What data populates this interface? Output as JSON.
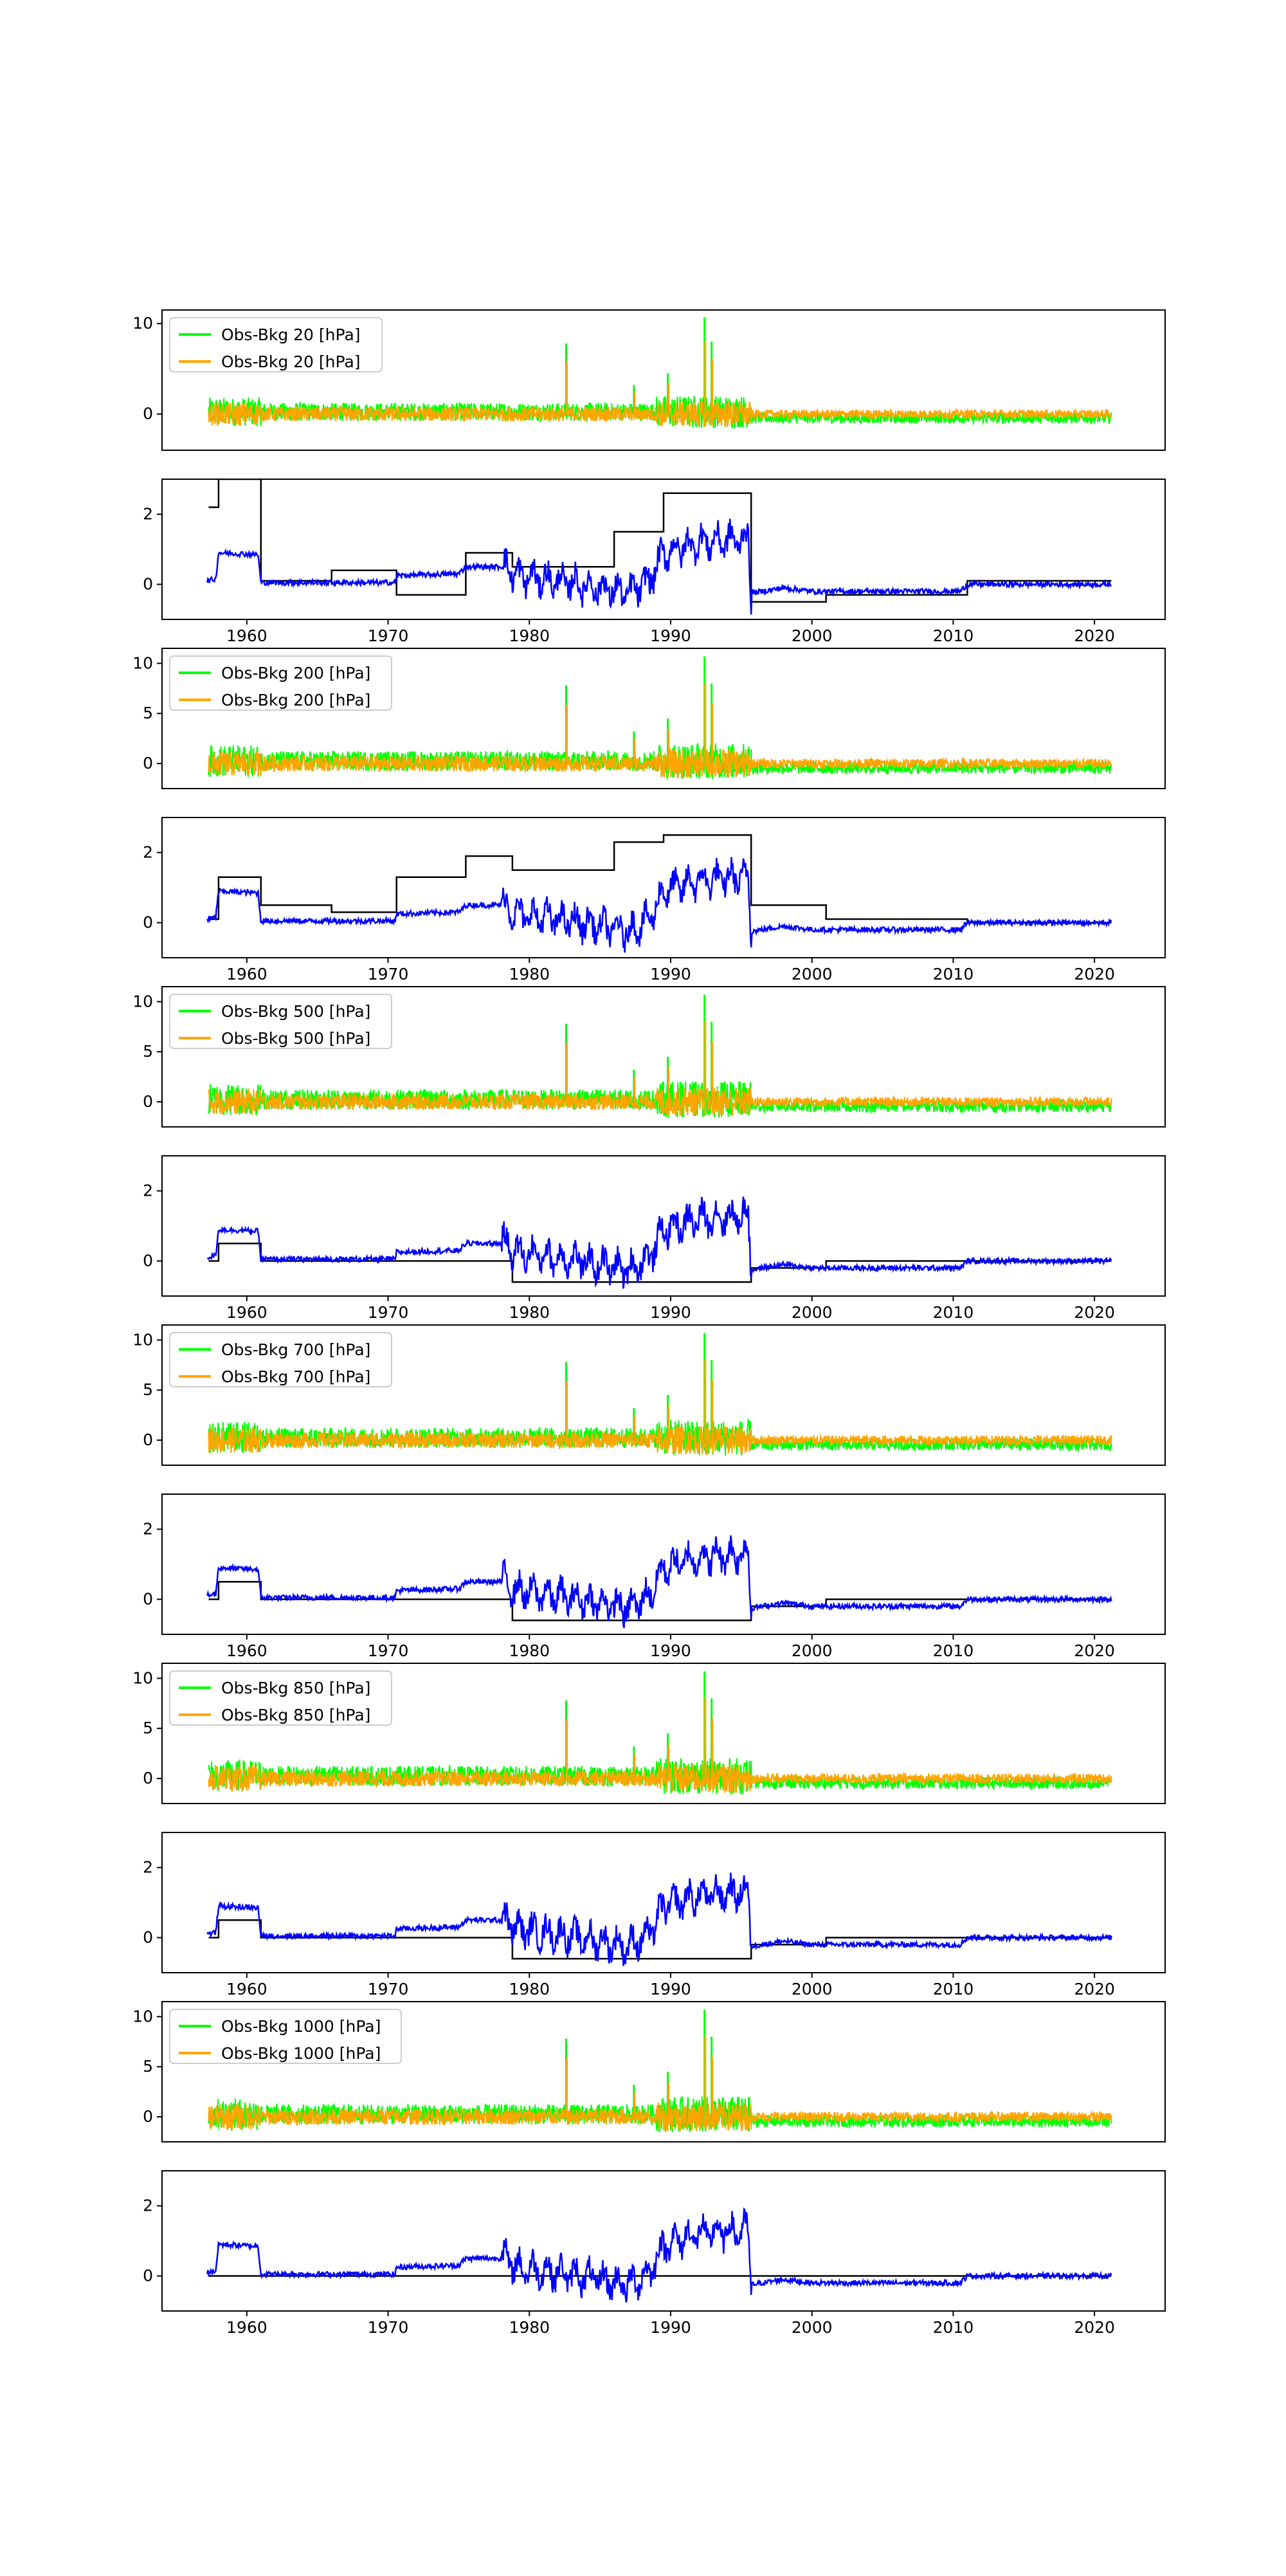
{
  "chart_data": [
    {
      "type": "line",
      "panel": 1,
      "kind": "obs",
      "yticks": [
        0,
        10
      ],
      "ylim": [
        -4,
        11.5
      ],
      "legend_location": "top-left",
      "series": [
        {
          "name": "Obs-Bkg 20 [hPa]",
          "color": "#00ff00"
        },
        {
          "name": "Obs-Bkg 20 [hPa]",
          "color": "#ffa500"
        }
      ]
    },
    {
      "type": "line",
      "panel": 2,
      "kind": "bias",
      "yticks": [
        0,
        2
      ],
      "ylim": [
        -1,
        3
      ],
      "series": [
        {
          "color": "#000000"
        },
        {
          "color": "#0000ff"
        }
      ]
    },
    {
      "type": "line",
      "panel": 3,
      "kind": "obs",
      "yticks": [
        0,
        5,
        10
      ],
      "ylim": [
        -2.5,
        11.5
      ],
      "legend_location": "top-left",
      "series": [
        {
          "name": "Obs-Bkg 200 [hPa]",
          "color": "#00ff00"
        },
        {
          "name": "Obs-Bkg 200 [hPa]",
          "color": "#ffa500"
        }
      ]
    },
    {
      "type": "line",
      "panel": 4,
      "kind": "bias",
      "yticks": [
        0,
        2
      ],
      "ylim": [
        -1,
        3
      ],
      "series": [
        {
          "color": "#000000"
        },
        {
          "color": "#0000ff"
        }
      ]
    },
    {
      "type": "line",
      "panel": 5,
      "kind": "obs",
      "yticks": [
        0,
        5,
        10
      ],
      "ylim": [
        -2.5,
        11.5
      ],
      "legend_location": "top-left",
      "series": [
        {
          "name": "Obs-Bkg 500 [hPa]",
          "color": "#00ff00"
        },
        {
          "name": "Obs-Bkg 500 [hPa]",
          "color": "#ffa500"
        }
      ]
    },
    {
      "type": "line",
      "panel": 6,
      "kind": "bias",
      "yticks": [
        0,
        2
      ],
      "ylim": [
        -1,
        3
      ],
      "series": [
        {
          "color": "#000000"
        },
        {
          "color": "#0000ff"
        }
      ]
    },
    {
      "type": "line",
      "panel": 7,
      "kind": "obs",
      "yticks": [
        0,
        5,
        10
      ],
      "ylim": [
        -2.5,
        11.5
      ],
      "legend_location": "top-left",
      "series": [
        {
          "name": "Obs-Bkg 700 [hPa]",
          "color": "#00ff00"
        },
        {
          "name": "Obs-Bkg 700 [hPa]",
          "color": "#ffa500"
        }
      ]
    },
    {
      "type": "line",
      "panel": 8,
      "kind": "bias",
      "yticks": [
        0,
        2
      ],
      "ylim": [
        -1,
        3
      ],
      "series": [
        {
          "color": "#000000"
        },
        {
          "color": "#0000ff"
        }
      ]
    },
    {
      "type": "line",
      "panel": 9,
      "kind": "obs",
      "yticks": [
        0,
        5,
        10
      ],
      "ylim": [
        -2.5,
        11.5
      ],
      "legend_location": "top-left",
      "series": [
        {
          "name": "Obs-Bkg 850 [hPa]",
          "color": "#00ff00"
        },
        {
          "name": "Obs-Bkg 850 [hPa]",
          "color": "#ffa500"
        }
      ]
    },
    {
      "type": "line",
      "panel": 10,
      "kind": "bias",
      "yticks": [
        0,
        2
      ],
      "ylim": [
        -1,
        3
      ],
      "series": [
        {
          "color": "#000000"
        },
        {
          "color": "#0000ff"
        }
      ]
    },
    {
      "type": "line",
      "panel": 11,
      "kind": "obs",
      "yticks": [
        0,
        5,
        10
      ],
      "ylim": [
        -2.5,
        11.5
      ],
      "legend_location": "top-left",
      "series": [
        {
          "name": "Obs-Bkg 1000 [hPa]",
          "color": "#00ff00"
        },
        {
          "name": "Obs-Bkg 1000 [hPa]",
          "color": "#ffa500"
        }
      ]
    },
    {
      "type": "line",
      "panel": 12,
      "kind": "bias",
      "yticks": [
        0,
        2
      ],
      "ylim": [
        -1,
        3
      ],
      "series": [
        {
          "color": "#000000"
        },
        {
          "color": "#0000ff"
        }
      ]
    }
  ],
  "x_axis": {
    "range": [
      1954,
      2025
    ],
    "ticks": [
      1960,
      1970,
      1980,
      1990,
      2000,
      2010,
      2020
    ],
    "tick_panels": [
      2,
      4,
      6,
      8,
      10,
      12
    ]
  },
  "shared_series": {
    "blue_bias_curve": [
      [
        1957.2,
        0.1
      ],
      [
        1957.8,
        0.15
      ],
      [
        1958.0,
        0.9
      ],
      [
        1960.8,
        0.85
      ],
      [
        1961.0,
        0.05
      ],
      [
        1966,
        0.05
      ],
      [
        1970.5,
        0.05
      ],
      [
        1970.6,
        0.25
      ],
      [
        1975,
        0.3
      ],
      [
        1975.5,
        0.5
      ],
      [
        1978.5,
        0.5
      ],
      [
        1979,
        0.25
      ],
      [
        1982,
        0.1
      ],
      [
        1985,
        -0.1
      ],
      [
        1987,
        -0.25
      ],
      [
        1988.5,
        0.1
      ],
      [
        1989.5,
        0.9
      ],
      [
        1992,
        1.2
      ],
      [
        1995.5,
        1.3
      ],
      [
        1995.7,
        -0.25
      ],
      [
        1998,
        -0.1
      ],
      [
        2000,
        -0.2
      ],
      [
        2010.5,
        -0.2
      ],
      [
        2011,
        0.0
      ],
      [
        2021.2,
        0.0
      ]
    ],
    "obs_spikes": [
      [
        1982.6,
        7.8
      ],
      [
        1987.4,
        3.2
      ],
      [
        1989.8,
        4.5
      ],
      [
        1992.4,
        10.7
      ],
      [
        1992.9,
        8.0
      ]
    ]
  }
}
